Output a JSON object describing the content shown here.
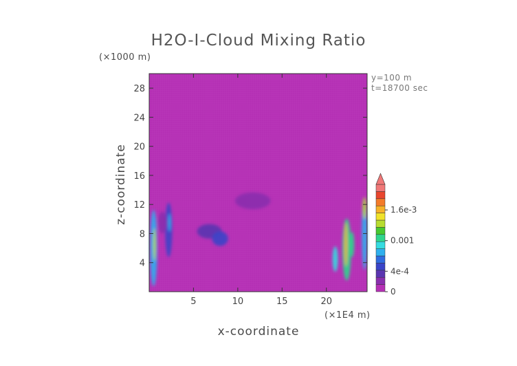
{
  "chart_data": {
    "type": "heatmap",
    "title": "H2O-I-Cloud Mixing Ratio",
    "xlabel": "x-coordinate",
    "ylabel": "z-coordinate",
    "x_unit": "(×1E4 m)",
    "y_unit": "(×1000 m)",
    "annotations": [
      "y=100 m",
      "t=18700 sec"
    ],
    "xlim": [
      0,
      24.6
    ],
    "ylim": [
      0,
      30
    ],
    "x_ticks": [
      5,
      10,
      15,
      20
    ],
    "y_ticks": [
      4,
      8,
      12,
      16,
      20,
      24,
      28
    ],
    "background_value": 0,
    "grid": false,
    "colorbar": {
      "labels": [
        {
          "text": "0",
          "value": 0
        },
        {
          "text": "4e-4",
          "value": 0.0004
        },
        {
          "text": "0.001",
          "value": 0.001
        },
        {
          "text": "1.6e-3",
          "value": 0.0016
        }
      ],
      "max": 0.0021,
      "extend": "max",
      "colors": [
        "#b530b5",
        "#8a2fae",
        "#5a35b0",
        "#3a44c8",
        "#2f6ce0",
        "#2fb0ee",
        "#35dce0",
        "#2fd58c",
        "#47c930",
        "#b8dc30",
        "#f0e22a",
        "#f6b128",
        "#f37b2a",
        "#e9462e",
        "#f07878"
      ]
    },
    "features": [
      {
        "x": 0.5,
        "z": 6.0,
        "width": 0.8,
        "height": 10.5,
        "value": 0.0008
      },
      {
        "x": 0.6,
        "z": 6.5,
        "width": 0.3,
        "height": 4.5,
        "value": 0.0013
      },
      {
        "x": 2.2,
        "z": 8.5,
        "width": 0.8,
        "height": 7.5,
        "value": 0.0004
      },
      {
        "x": 2.3,
        "z": 9.5,
        "width": 0.3,
        "height": 2.5,
        "value": 0.0008
      },
      {
        "x": 1.5,
        "z": 9.5,
        "width": 1.0,
        "height": 3.0,
        "value": 0.0001
      },
      {
        "x": 6.8,
        "z": 8.3,
        "width": 2.8,
        "height": 2.0,
        "value": 0.0003
      },
      {
        "x": 8.0,
        "z": 7.3,
        "width": 1.8,
        "height": 2.0,
        "value": 0.0004
      },
      {
        "x": 11.7,
        "z": 12.5,
        "width": 4.0,
        "height": 2.3,
        "value": 0.0001
      },
      {
        "x": 21.0,
        "z": 4.5,
        "width": 0.6,
        "height": 3.5,
        "value": 0.0009
      },
      {
        "x": 22.3,
        "z": 5.8,
        "width": 1.0,
        "height": 8.5,
        "value": 0.0011
      },
      {
        "x": 22.2,
        "z": 6.5,
        "width": 0.3,
        "height": 6.0,
        "value": 0.0016
      },
      {
        "x": 22.9,
        "z": 6.5,
        "width": 0.5,
        "height": 3.5,
        "value": 0.001
      },
      {
        "x": 24.3,
        "z": 8.0,
        "width": 0.6,
        "height": 10.0,
        "value": 0.0007
      },
      {
        "x": 24.3,
        "z": 11.5,
        "width": 0.4,
        "height": 3.0,
        "value": 0.0014
      }
    ]
  }
}
